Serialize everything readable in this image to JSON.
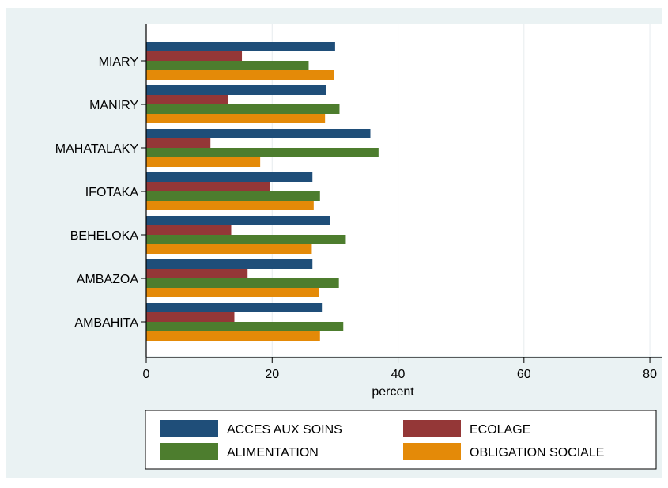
{
  "chart_data": {
    "type": "bar",
    "orientation": "horizontal",
    "xlabel": "percent",
    "xlim": [
      0,
      82
    ],
    "xticks": [
      "0",
      "20",
      "40",
      "60",
      "80"
    ],
    "grid": true,
    "legend_position": "bottom",
    "categories": [
      "MIARY",
      "MANIRY",
      "MAHATALAKY",
      "IFOTAKA",
      "BEHELOKA",
      "AMBAZOA",
      "AMBAHITA"
    ],
    "series": [
      {
        "name": "ACCES AUX SOINS",
        "color": "#1f4e79",
        "values": [
          30.0,
          28.6,
          35.6,
          26.4,
          29.2,
          26.4,
          27.9
        ]
      },
      {
        "name": "ECOLAGE",
        "color": "#943737",
        "values": [
          15.2,
          13.0,
          10.2,
          19.6,
          13.5,
          16.1,
          14.0
        ]
      },
      {
        "name": "ALIMENTATION",
        "color": "#4d7d2e",
        "values": [
          25.8,
          30.7,
          36.9,
          27.6,
          31.7,
          30.6,
          31.3
        ]
      },
      {
        "name": "OBLIGATION SOCIALE",
        "color": "#e48a08",
        "values": [
          29.8,
          28.4,
          18.1,
          26.6,
          26.3,
          27.4,
          27.6
        ]
      }
    ]
  }
}
